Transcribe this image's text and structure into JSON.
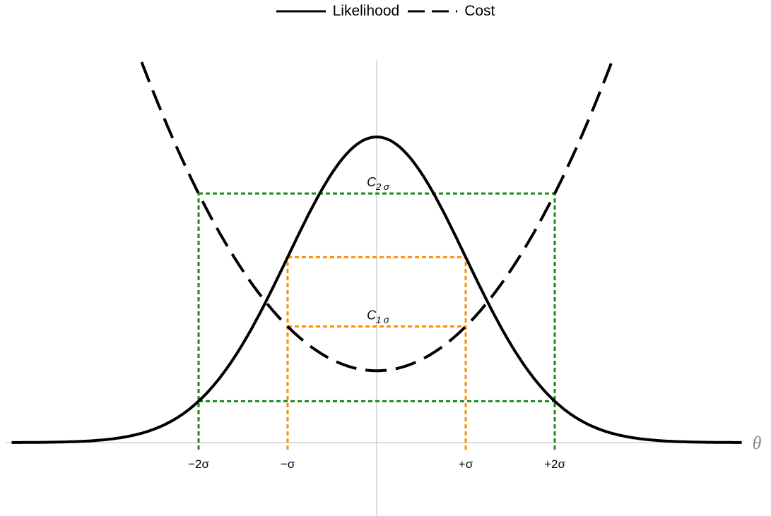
{
  "chart_data": {
    "type": "line",
    "x_axis": {
      "label": "θ",
      "ticks": [
        {
          "x": -2,
          "label": "−2σ"
        },
        {
          "x": -1,
          "label": "−σ"
        },
        {
          "x": 1,
          "label": "+σ"
        },
        {
          "x": 2,
          "label": "+2σ"
        }
      ]
    },
    "series": [
      {
        "name": "Likelihood",
        "style": "solid",
        "color": "#000000",
        "function": "gaussian",
        "mu": 0,
        "sigma": 1,
        "peak": 1.0
      },
      {
        "name": "Cost",
        "style": "dashed",
        "color": "#000000",
        "function": "parabola",
        "vertex": 0.235,
        "curvature": 0.145
      }
    ],
    "regions": [
      {
        "label_base": "C",
        "label_sub": "1 σ",
        "sigma": 1,
        "color": "#ff8c00"
      },
      {
        "label_base": "C",
        "label_sub": "2 σ",
        "sigma": 2,
        "color": "#1a8a1a"
      }
    ],
    "grid": false,
    "legend_position": "top-center",
    "xlim": [
      -4.1,
      4.1
    ],
    "ylim": [
      -0.26,
      1.25
    ]
  }
}
